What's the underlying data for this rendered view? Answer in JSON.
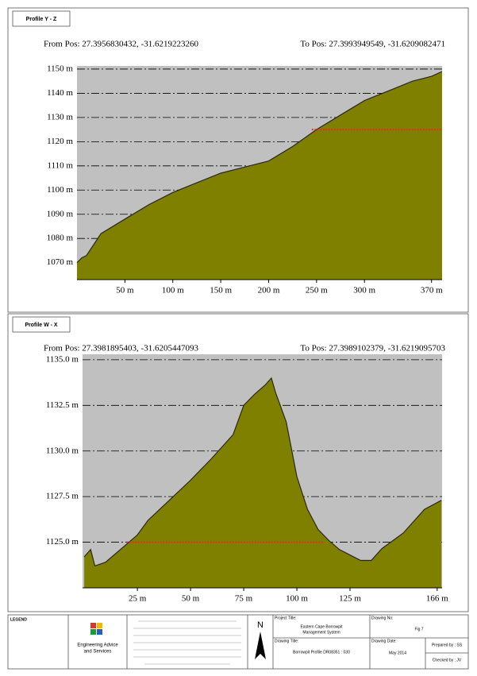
{
  "chart_data": [
    {
      "type": "area",
      "title": "Profile Y - Z",
      "annotations": [
        "From Pos: 27.3956830432, -31.6219223260",
        "To Pos: 27.3993949549, -31.6209082471"
      ],
      "x": [
        0,
        5,
        10,
        25,
        50,
        75,
        100,
        125,
        150,
        175,
        200,
        225,
        250,
        275,
        300,
        325,
        350,
        370,
        381
      ],
      "values": [
        1070,
        1072,
        1073,
        1082,
        1088,
        1094,
        1099,
        1103,
        1107,
        1109.5,
        1112,
        1118,
        1125,
        1131,
        1137,
        1141,
        1145,
        1147,
        1149
      ],
      "color": "#808000",
      "grid": true,
      "reference_line": {
        "value": 1125,
        "from": 245,
        "to": 381,
        "color": "#e0302a"
      },
      "xlim": [
        0,
        381
      ],
      "ylim": [
        1063,
        1151.3
      ],
      "xticks": [
        {
          "value": 50,
          "label": "50 m"
        },
        {
          "value": 100,
          "label": "100 m"
        },
        {
          "value": 150,
          "label": "150 m"
        },
        {
          "value": 200,
          "label": "200 m"
        },
        {
          "value": 250,
          "label": "250 m"
        },
        {
          "value": 300,
          "label": "300 m"
        },
        {
          "value": 370,
          "label": "370 m"
        }
      ],
      "yticks": [
        {
          "value": 1070,
          "label": "1070 m"
        },
        {
          "value": 1080,
          "label": "1080 m"
        },
        {
          "value": 1090,
          "label": "1090 m"
        },
        {
          "value": 1100,
          "label": "1100 m"
        },
        {
          "value": 1110,
          "label": "1110 m"
        },
        {
          "value": 1120,
          "label": "1120 m"
        },
        {
          "value": 1130,
          "label": "1130 m"
        },
        {
          "value": 1140,
          "label": "1140 m"
        },
        {
          "value": 1150,
          "label": "1150 m"
        }
      ]
    },
    {
      "type": "area",
      "title": "Profile W - X",
      "annotations": [
        "From Pos: 27.3981895403, -31.6205447093",
        "To Pos: 27.3989102379, -31.6219095703"
      ],
      "x": [
        0,
        3,
        5,
        10,
        20,
        25,
        30,
        40,
        50,
        60,
        70,
        75,
        80,
        85,
        88,
        90,
        95,
        100,
        105,
        110,
        115,
        120,
        125,
        130,
        135,
        140,
        150,
        160,
        168
      ],
      "values": [
        1124.2,
        1124.6,
        1123.7,
        1123.9,
        1124.9,
        1125.4,
        1126.2,
        1127.3,
        1128.4,
        1129.6,
        1130.9,
        1132.5,
        1133.1,
        1133.6,
        1134.0,
        1133.2,
        1131.6,
        1128.6,
        1126.8,
        1125.7,
        1125.1,
        1124.6,
        1124.3,
        1124.0,
        1124.0,
        1124.65,
        1125.5,
        1126.8,
        1127.3
      ],
      "color": "#808000",
      "grid": true,
      "reference_line": {
        "value": 1125,
        "from": 20,
        "to": 113,
        "color": "#e0302a"
      },
      "xlim": [
        -0.8,
        168.3
      ],
      "ylim": [
        1122.5,
        1135.3
      ],
      "xticks": [
        {
          "value": 25,
          "label": "25 m"
        },
        {
          "value": 50,
          "label": "50 m"
        },
        {
          "value": 75,
          "label": "75 m"
        },
        {
          "value": 100,
          "label": "100 m"
        },
        {
          "value": 125,
          "label": "125 m"
        },
        {
          "value": 166,
          "label": "166 m"
        }
      ],
      "yticks": [
        {
          "value": 1125,
          "label": "1125.0 m"
        },
        {
          "value": 1127.5,
          "label": "1127.5 m"
        },
        {
          "value": 1130,
          "label": "1130.0 m"
        },
        {
          "value": 1132.5,
          "label": "1132.5 m"
        },
        {
          "value": 1135,
          "label": "1135.0 m"
        }
      ]
    }
  ],
  "footer": {
    "legend": "LEGEND",
    "company": [
      "Engineering Advice",
      "and Services"
    ],
    "north": "N",
    "project_title_label": "Project Title:",
    "project_title": [
      "Eastern Cape Borrowpit",
      "Management System"
    ],
    "drawing_no_label": "Drawing No:",
    "drawing_no": "Fig 7",
    "drawing_title_label": "Drawing Title:",
    "drawing_title": "Borrowpit Profile DR08351 : 030",
    "drawing_date_label": "Drawing Date:",
    "drawing_date": "May 2014",
    "prepared_by": "Prepared by : SS",
    "checked_by": "Checked by : JV"
  }
}
